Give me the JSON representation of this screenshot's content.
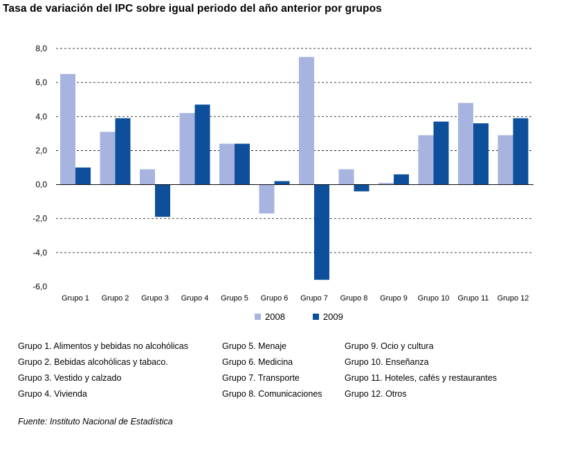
{
  "title": "Tasa de variación del IPC sobre igual periodo del año anterior por grupos",
  "source": "Fuente: Instituto Nacional de Estadística",
  "colors": {
    "s2008": "#a7b4e0",
    "s2009": "#0d4f9a"
  },
  "chart_data": {
    "type": "bar",
    "categories": [
      "Grupo 1",
      "Grupo 2",
      "Grupo 3",
      "Grupo 4",
      "Grupo 5",
      "Grupo 6",
      "Grupo 7",
      "Grupo 8",
      "Grupo 9",
      "Grupo 10",
      "Grupo 11",
      "Grupo 12"
    ],
    "series": [
      {
        "name": "2008",
        "values": [
          6.5,
          3.1,
          0.9,
          4.2,
          2.4,
          -1.7,
          7.5,
          0.9,
          0.1,
          2.9,
          4.8,
          2.9
        ]
      },
      {
        "name": "2009",
        "values": [
          1.0,
          3.9,
          -1.9,
          4.7,
          2.4,
          0.2,
          -5.6,
          -0.4,
          0.6,
          3.7,
          3.6,
          3.9
        ]
      }
    ],
    "yticks": [
      "8,0",
      "6,0",
      "4,0",
      "2,0",
      "0,0",
      "-2,0",
      "-4,0",
      "-6,0"
    ],
    "ylim": [
      -6,
      8
    ],
    "grid": true,
    "legend_position": "bottom"
  },
  "group_legend": {
    "col1": [
      "Grupo 1. Alimentos y bebidas no alcohólicas",
      "Grupo 2. Bebidas alcohólicas y  tabaco.",
      "Grupo 3. Vestido y calzado",
      "Grupo 4. Vivienda"
    ],
    "col2": [
      "Grupo 5. Menaje",
      "Grupo 6. Medicina",
      "Grupo 7. Transporte",
      "Grupo 8. Comunicaciones"
    ],
    "col3": [
      "Grupo 9. Ocio y cultura",
      "Grupo 10. Enseñanza",
      "Grupo 11. Hoteles, cafés y restaurantes",
      "Grupo 12. Otros"
    ]
  }
}
